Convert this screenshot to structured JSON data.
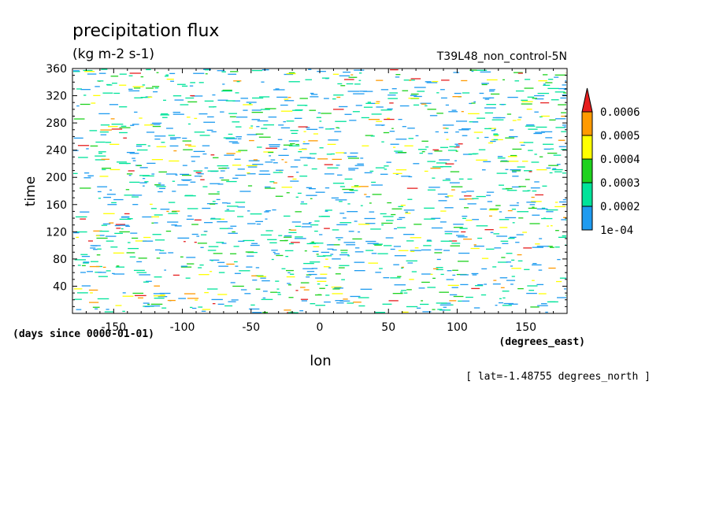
{
  "chart_data": {
    "type": "heatmap",
    "title": "precipitation flux",
    "units": "(kg m-2 s-1)",
    "dataset": "T39L48_non_control-5N",
    "xlabel": "lon",
    "x_units": "(degrees_east)",
    "ylabel": "time",
    "y_units": "(days since 0000-01-01)",
    "footnote": "[ lat=-1.48755 degrees_north ]",
    "xlim": [
      -180,
      180
    ],
    "ylim": [
      0,
      360
    ],
    "x_ticks": [
      -150,
      -100,
      -50,
      0,
      50,
      100,
      150
    ],
    "x_tick_labels": [
      "-150",
      "-100",
      "-50",
      "0",
      "50",
      "100",
      "150"
    ],
    "y_ticks": [
      40,
      80,
      120,
      160,
      200,
      240,
      280,
      320,
      360
    ],
    "y_tick_labels": [
      "40",
      "80",
      "120",
      "160",
      "200",
      "240",
      "280",
      "320",
      "360"
    ],
    "colorbar": {
      "levels": [
        0.0001,
        0.0002,
        0.0003,
        0.0004,
        0.0005,
        0.0006
      ],
      "labels": [
        "1e-04",
        "0.0002",
        "0.0003",
        "0.0004",
        "0.0005",
        "0.0006"
      ],
      "colors": [
        "#1e9bf0",
        "#00e39a",
        "#1ed21e",
        "#ffff00",
        "#ff9a00",
        "#e61e1e"
      ],
      "extend": "max"
    },
    "field_description": "sparse short horizontal streaks of precipitation flux above 1e-04 scattered across all longitudes and times, predominantly blue and green with occasional yellow, orange and red maxima"
  }
}
